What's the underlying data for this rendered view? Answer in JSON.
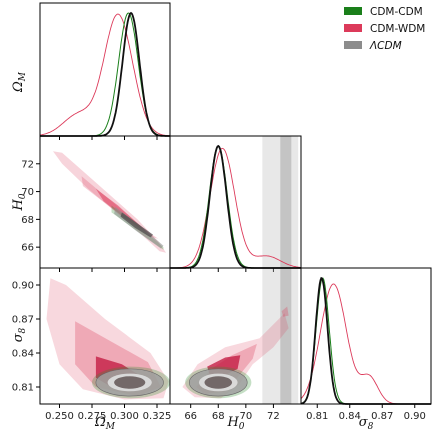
{
  "chart_data": {
    "type": "triangle-corner-plot",
    "parameters": [
      {
        "key": "omega",
        "label": "Ω",
        "sub": "M",
        "range": [
          0.235,
          0.335
        ],
        "ticks": [
          0.25,
          0.275,
          0.3,
          0.325
        ],
        "tick_labels": [
          "0.250",
          "0.275",
          "0.300",
          "0.325"
        ]
      },
      {
        "key": "h0",
        "label": "H",
        "sub": "0",
        "range": [
          64.5,
          74
        ],
        "ticks": [
          66,
          68,
          70,
          72
        ],
        "tick_labels": [
          "66",
          "68",
          "70",
          "72"
        ]
      },
      {
        "key": "s8",
        "label": "σ",
        "sub": "8",
        "range": [
          0.795,
          0.915
        ],
        "ticks": [
          0.81,
          0.84,
          0.87,
          0.9
        ],
        "tick_labels": [
          "0.81",
          "0.84",
          "0.87",
          "0.90"
        ]
      }
    ],
    "legend": {
      "placement": "top-right",
      "entries": [
        {
          "label": "CDM-CDM",
          "color": "#1a7f1a",
          "italic": false
        },
        {
          "label": "CDM-WDM",
          "color": "#dc3a5a",
          "italic": false
        },
        {
          "label": "ΛCDM",
          "color": "#8c8c8c",
          "italic": true
        }
      ]
    },
    "series": [
      {
        "name": "CDM-CDM",
        "color": "#1a7f1a",
        "means": {
          "omega": 0.303,
          "h0": 68.0,
          "s8": 0.815
        },
        "sigmas": {
          "omega": 0.0075,
          "h0": 0.65,
          "s8": 0.006
        }
      },
      {
        "name": "CDM-WDM",
        "color": "#dc3a5a",
        "means": {
          "omega": 0.296,
          "h0": 68.3,
          "s8": 0.825
        },
        "sigmas": {
          "omega": 0.011,
          "h0": 0.9,
          "s8": 0.012
        }
      },
      {
        "name": "ΛCDM",
        "color": "#111111",
        "means": {
          "omega": 0.305,
          "h0": 68.0,
          "s8": 0.814
        },
        "sigmas": {
          "omega": 0.0065,
          "h0": 0.6,
          "s8": 0.0055
        }
      }
    ],
    "gray_band": {
      "param": "h0",
      "outer": [
        71.2,
        73.8
      ],
      "inner": [
        72.5,
        73.3
      ]
    }
  }
}
